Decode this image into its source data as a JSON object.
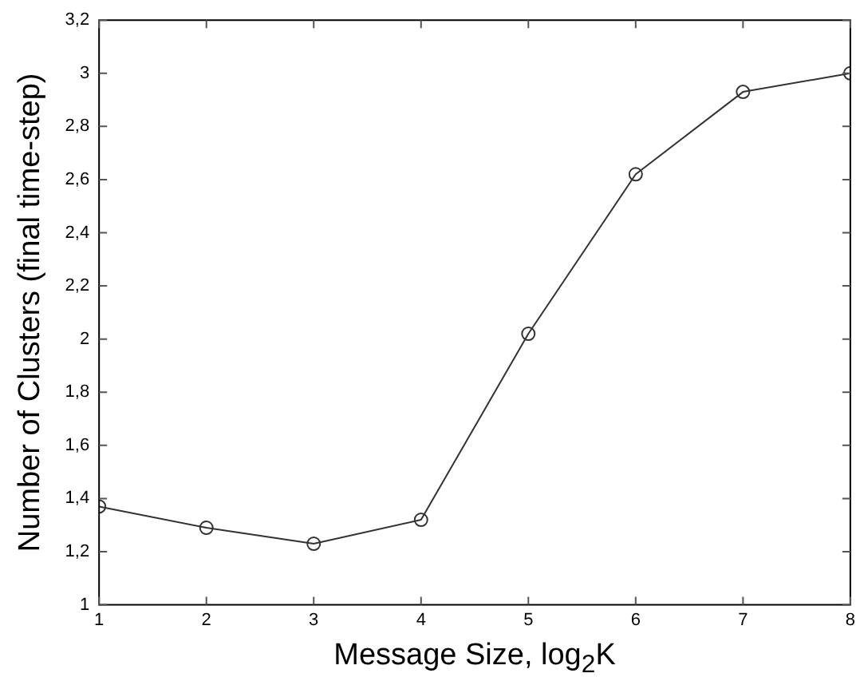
{
  "chart_data": {
    "type": "line",
    "xlabel": "Message Size, log$_{2}$K",
    "ylabel": "Number of Clusters (final time-step)",
    "x": [
      1,
      2,
      3,
      4,
      5,
      6,
      7,
      8
    ],
    "series": [
      {
        "color": "#333333",
        "values": [
          1.37,
          1.29,
          1.23,
          1.32,
          2.02,
          2.62,
          2.93,
          3.0
        ]
      }
    ],
    "xlim": [
      1,
      8
    ],
    "xticks": [
      1,
      2,
      3,
      4,
      5,
      6,
      7,
      8
    ],
    "ylim": [
      1,
      3.2
    ],
    "yticks": [
      1,
      {
        "value": 1.2,
        "label": "1,2"
      },
      {
        "value": 1.4,
        "label": "1,4"
      },
      {
        "value": 1.6,
        "label": "1,6"
      },
      {
        "value": 1.8,
        "label": "1,8"
      },
      2,
      {
        "value": 2.2,
        "label": "2,2"
      },
      {
        "value": 2.4,
        "label": "2,4"
      },
      {
        "value": 2.6,
        "label": "2,6"
      },
      {
        "value": 2.8,
        "label": "2,8"
      },
      3,
      {
        "value": 3.2,
        "label": "3,2"
      }
    ],
    "marker": "circle",
    "line_style": "solid",
    "grid": false,
    "legend": false
  }
}
